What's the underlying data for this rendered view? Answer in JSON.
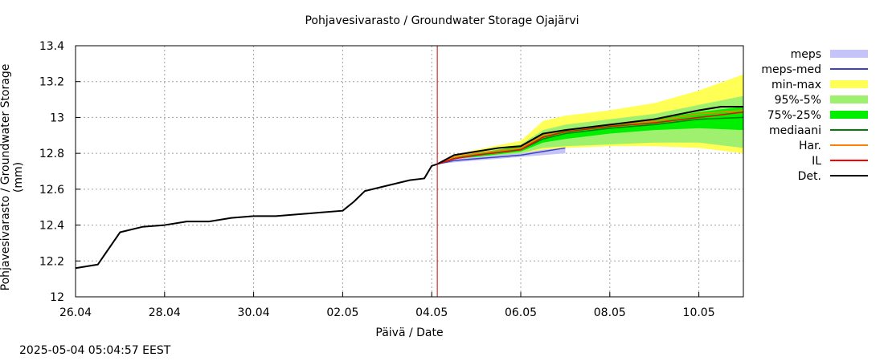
{
  "chart_data": {
    "type": "line",
    "title": "Pohjavesivarasto / Groundwater Storage   Ojajärvi",
    "xlabel": "Päivä / Date",
    "ylabel": "Pohjavesivarasto / Groundwater Storage (mm)",
    "timestamp": "2025-05-04  05:04:57 EEST",
    "xlim": [
      "2025-04-26",
      "2025-05-11"
    ],
    "ylim": [
      12.0,
      13.4
    ],
    "xticks": [
      {
        "date": "2025-04-26",
        "label": "26.04"
      },
      {
        "date": "2025-04-28",
        "label": "28.04"
      },
      {
        "date": "2025-04-30",
        "label": "30.04"
      },
      {
        "date": "2025-05-02",
        "label": "02.05"
      },
      {
        "date": "2025-05-04",
        "label": "04.05"
      },
      {
        "date": "2025-05-06",
        "label": "06.05"
      },
      {
        "date": "2025-05-08",
        "label": "08.05"
      },
      {
        "date": "2025-05-10",
        "label": "10.05"
      }
    ],
    "yticks": [
      {
        "value": 12.0,
        "label": "12"
      },
      {
        "value": 12.2,
        "label": "12.2"
      },
      {
        "value": 12.4,
        "label": "12.4"
      },
      {
        "value": 12.6,
        "label": "12.6"
      },
      {
        "value": 12.8,
        "label": "12.8"
      },
      {
        "value": 13.0,
        "label": "13"
      },
      {
        "value": 13.2,
        "label": "13.2"
      },
      {
        "value": 13.4,
        "label": "13.4"
      }
    ],
    "grid": true,
    "legend_position": "right",
    "forecast_start": "2025-05-04 03:00",
    "forecast_start_color": "#cc0000",
    "series": [
      {
        "name": "Det.",
        "kind": "line",
        "color": "#000000",
        "points": [
          [
            "2025-04-26 00:00",
            12.16
          ],
          [
            "2025-04-26 12:00",
            12.18
          ],
          [
            "2025-04-27 00:00",
            12.36
          ],
          [
            "2025-04-27 12:00",
            12.39
          ],
          [
            "2025-04-28 00:00",
            12.4
          ],
          [
            "2025-04-28 12:00",
            12.42
          ],
          [
            "2025-04-29 00:00",
            12.42
          ],
          [
            "2025-04-29 12:00",
            12.44
          ],
          [
            "2025-04-30 00:00",
            12.45
          ],
          [
            "2025-04-30 12:00",
            12.45
          ],
          [
            "2025-05-01 00:00",
            12.46
          ],
          [
            "2025-05-01 12:00",
            12.47
          ],
          [
            "2025-05-02 00:00",
            12.48
          ],
          [
            "2025-05-02 06:00",
            12.53
          ],
          [
            "2025-05-02 12:00",
            12.59
          ],
          [
            "2025-05-03 00:00",
            12.62
          ],
          [
            "2025-05-03 12:00",
            12.65
          ],
          [
            "2025-05-03 20:00",
            12.66
          ],
          [
            "2025-05-04 00:00",
            12.73
          ],
          [
            "2025-05-04 03:00",
            12.74
          ],
          [
            "2025-05-04 12:00",
            12.79
          ],
          [
            "2025-05-05 00:00",
            12.81
          ],
          [
            "2025-05-05 12:00",
            12.83
          ],
          [
            "2025-05-06 00:00",
            12.84
          ],
          [
            "2025-05-06 12:00",
            12.91
          ],
          [
            "2025-05-07 00:00",
            12.93
          ],
          [
            "2025-05-08 00:00",
            12.96
          ],
          [
            "2025-05-09 00:00",
            12.99
          ],
          [
            "2025-05-10 00:00",
            13.04
          ],
          [
            "2025-05-10 12:00",
            13.06
          ],
          [
            "2025-05-11 00:00",
            13.06
          ]
        ]
      },
      {
        "name": "IL",
        "kind": "line",
        "color": "#ff0000",
        "points": [
          [
            "2025-05-04 03:00",
            12.74
          ],
          [
            "2025-05-04 12:00",
            12.77
          ],
          [
            "2025-05-05 00:00",
            12.79
          ],
          [
            "2025-05-06 00:00",
            12.82
          ],
          [
            "2025-05-06 12:00",
            12.89
          ],
          [
            "2025-05-07 00:00",
            12.92
          ],
          [
            "2025-05-08 00:00",
            12.95
          ],
          [
            "2025-05-09 00:00",
            12.97
          ],
          [
            "2025-05-10 00:00",
            13.0
          ],
          [
            "2025-05-11 00:00",
            13.03
          ]
        ]
      },
      {
        "name": "Har.",
        "kind": "line",
        "color": "#ff8000",
        "points": [
          [
            "2025-05-04 03:00",
            12.74
          ],
          [
            "2025-05-04 12:00",
            12.78
          ],
          [
            "2025-05-05 00:00",
            12.8
          ],
          [
            "2025-05-06 00:00",
            12.83
          ],
          [
            "2025-05-06 12:00",
            12.9
          ],
          [
            "2025-05-07 00:00",
            12.93
          ],
          [
            "2025-05-08 00:00",
            12.96
          ],
          [
            "2025-05-09 00:00",
            12.98
          ],
          [
            "2025-05-10 00:00",
            13.02
          ],
          [
            "2025-05-11 00:00",
            13.04
          ]
        ]
      },
      {
        "name": "mediaani",
        "kind": "line",
        "color": "#008000",
        "points": [
          [
            "2025-05-04 03:00",
            12.74
          ],
          [
            "2025-05-04 12:00",
            12.77
          ],
          [
            "2025-05-05 00:00",
            12.79
          ],
          [
            "2025-05-06 00:00",
            12.82
          ],
          [
            "2025-05-06 12:00",
            12.88
          ],
          [
            "2025-05-07 00:00",
            12.91
          ],
          [
            "2025-05-08 00:00",
            12.94
          ],
          [
            "2025-05-09 00:00",
            12.96
          ],
          [
            "2025-05-10 00:00",
            12.99
          ],
          [
            "2025-05-11 00:00",
            13.0
          ]
        ]
      },
      {
        "name": "meps-med",
        "kind": "line",
        "color": "#4040c0",
        "points": [
          [
            "2025-05-04 03:00",
            12.74
          ],
          [
            "2025-05-04 12:00",
            12.76
          ],
          [
            "2025-05-05 00:00",
            12.77
          ],
          [
            "2025-05-05 12:00",
            12.78
          ],
          [
            "2025-05-06 00:00",
            12.79
          ],
          [
            "2025-05-06 12:00",
            12.81
          ],
          [
            "2025-05-07 00:00",
            12.83
          ]
        ]
      },
      {
        "name": "meps",
        "kind": "band",
        "color": "#c4c4f8",
        "points": [
          [
            "2025-05-04 03:00",
            12.74,
            12.74
          ],
          [
            "2025-05-04 12:00",
            12.75,
            12.77
          ],
          [
            "2025-05-05 00:00",
            12.76,
            12.78
          ],
          [
            "2025-05-05 12:00",
            12.77,
            12.79
          ],
          [
            "2025-05-06 00:00",
            12.78,
            12.8
          ],
          [
            "2025-05-06 12:00",
            12.79,
            12.82
          ],
          [
            "2025-05-07 00:00",
            12.8,
            12.83
          ]
        ]
      },
      {
        "name": "min-max",
        "kind": "band",
        "color": "#ffff55",
        "points": [
          [
            "2025-05-04 03:00",
            12.74,
            12.74
          ],
          [
            "2025-05-04 12:00",
            12.75,
            12.79
          ],
          [
            "2025-05-05 00:00",
            12.77,
            12.82
          ],
          [
            "2025-05-06 00:00",
            12.8,
            12.87
          ],
          [
            "2025-05-06 12:00",
            12.82,
            12.98
          ],
          [
            "2025-05-07 00:00",
            12.83,
            13.01
          ],
          [
            "2025-05-08 00:00",
            12.84,
            13.04
          ],
          [
            "2025-05-09 00:00",
            12.84,
            13.08
          ],
          [
            "2025-05-10 00:00",
            12.83,
            13.15
          ],
          [
            "2025-05-11 00:00",
            12.8,
            13.24
          ]
        ]
      },
      {
        "name": "95%-5%",
        "kind": "band",
        "color": "#a0f070",
        "points": [
          [
            "2025-05-04 03:00",
            12.74,
            12.74
          ],
          [
            "2025-05-04 12:00",
            12.75,
            12.78
          ],
          [
            "2025-05-05 00:00",
            12.77,
            12.81
          ],
          [
            "2025-05-06 00:00",
            12.8,
            12.85
          ],
          [
            "2025-05-06 12:00",
            12.83,
            12.93
          ],
          [
            "2025-05-07 00:00",
            12.84,
            12.96
          ],
          [
            "2025-05-08 00:00",
            12.85,
            12.99
          ],
          [
            "2025-05-09 00:00",
            12.86,
            13.02
          ],
          [
            "2025-05-10 00:00",
            12.86,
            13.07
          ],
          [
            "2025-05-11 00:00",
            12.83,
            13.12
          ]
        ]
      },
      {
        "name": "75%-25%",
        "kind": "band",
        "color": "#00ee00",
        "points": [
          [
            "2025-05-04 03:00",
            12.74,
            12.74
          ],
          [
            "2025-05-04 12:00",
            12.76,
            12.78
          ],
          [
            "2025-05-05 00:00",
            12.78,
            12.8
          ],
          [
            "2025-05-06 00:00",
            12.81,
            12.84
          ],
          [
            "2025-05-06 12:00",
            12.86,
            12.91
          ],
          [
            "2025-05-07 00:00",
            12.88,
            12.93
          ],
          [
            "2025-05-08 00:00",
            12.91,
            12.96
          ],
          [
            "2025-05-09 00:00",
            12.93,
            12.99
          ],
          [
            "2025-05-10 00:00",
            12.94,
            13.03
          ],
          [
            "2025-05-11 00:00",
            12.93,
            13.06
          ]
        ]
      }
    ],
    "legend_order": [
      "meps",
      "meps-med",
      "min-max",
      "95%-5%",
      "75%-25%",
      "mediaani",
      "Har.",
      "IL",
      "Det."
    ]
  }
}
